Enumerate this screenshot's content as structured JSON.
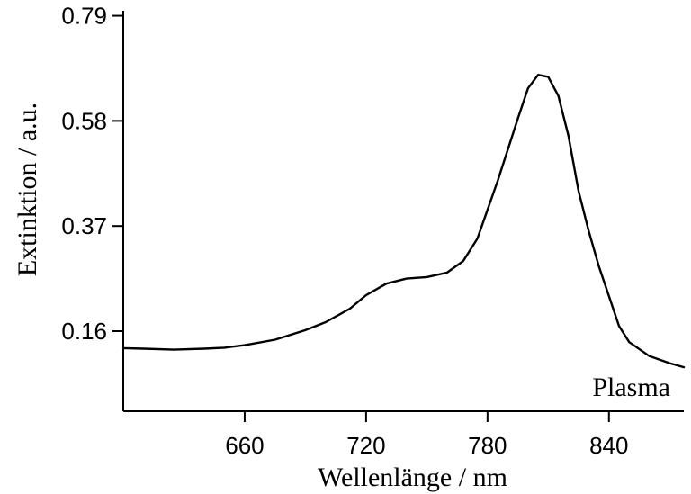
{
  "chart_data": {
    "type": "line",
    "xlabel": "Wellenlänge / nm",
    "ylabel": "Extinktion / a.u.",
    "annotation": "Plasma",
    "xlim": [
      600,
      877
    ],
    "ylim": [
      0.0,
      0.8
    ],
    "x_ticks": [
      660,
      720,
      780,
      840
    ],
    "y_ticks": [
      0.16,
      0.37,
      0.58,
      0.79
    ],
    "grid": false,
    "legend": "none",
    "series": [
      {
        "color": "#000000",
        "x": [
          600,
          610,
          625,
          640,
          650,
          660,
          675,
          690,
          700,
          712,
          720,
          730,
          740,
          750,
          760,
          768,
          775,
          785,
          795,
          800,
          805,
          810,
          815,
          820,
          825,
          830,
          835,
          840,
          845,
          850,
          860,
          870,
          877
        ],
        "y": [
          0.126,
          0.125,
          0.123,
          0.125,
          0.127,
          0.132,
          0.143,
          0.162,
          0.178,
          0.205,
          0.232,
          0.255,
          0.265,
          0.268,
          0.277,
          0.3,
          0.345,
          0.46,
          0.585,
          0.645,
          0.672,
          0.668,
          0.63,
          0.55,
          0.44,
          0.36,
          0.29,
          0.23,
          0.17,
          0.138,
          0.11,
          0.096,
          0.088
        ]
      }
    ]
  }
}
